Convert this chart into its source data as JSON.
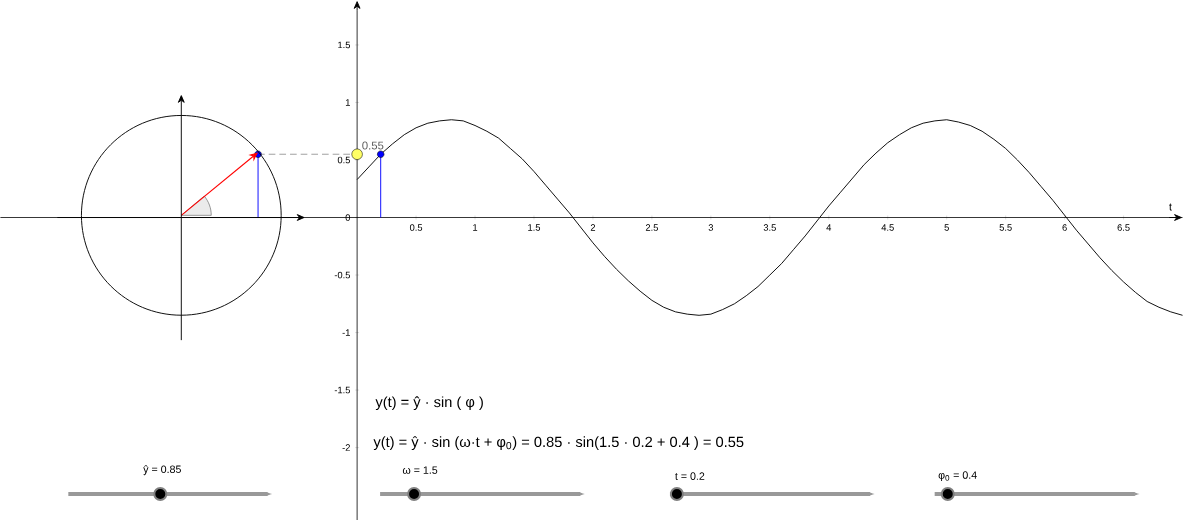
{
  "chart_data": {
    "type": "line",
    "xlabel": "t",
    "xlim": [
      -3.025,
      7.0
    ],
    "ylim": [
      -2.63,
      1.8
    ],
    "xticks": [
      0.5,
      1,
      1.5,
      2,
      2.5,
      3,
      3.5,
      4,
      4.5,
      5,
      5.5,
      6,
      6.5
    ],
    "yticks": [
      -2,
      -1.5,
      -1,
      -0.5,
      0,
      0.5,
      1,
      1.5
    ],
    "series": [
      {
        "color": "#000000",
        "x": [
          0,
          0.1,
          0.2,
          0.3,
          0.4,
          0.5,
          0.6,
          0.7,
          0.8,
          0.9,
          1.0,
          1.1,
          1.2,
          1.3,
          1.4,
          1.5,
          1.6,
          1.7,
          1.8,
          1.9,
          2.0,
          2.1,
          2.2,
          2.3,
          2.4,
          2.5,
          2.6,
          2.7,
          2.8,
          2.9,
          3.0,
          3.1,
          3.2,
          3.3,
          3.4,
          3.5,
          3.6,
          3.7,
          3.8,
          3.9,
          4.0,
          4.1,
          4.2,
          4.3,
          4.4,
          4.5,
          4.6,
          4.7,
          4.8,
          4.9,
          5.0,
          5.1,
          5.2,
          5.3,
          5.4,
          5.5,
          5.6,
          5.7,
          5.8,
          5.9,
          6.0,
          6.1,
          6.2,
          6.3,
          6.4,
          6.5,
          6.6,
          6.7,
          6.8,
          6.9,
          7.0
        ],
        "values": [
          0.33,
          0.44,
          0.55,
          0.64,
          0.72,
          0.78,
          0.82,
          0.84,
          0.85,
          0.84,
          0.8,
          0.75,
          0.69,
          0.6,
          0.51,
          0.4,
          0.28,
          0.16,
          0.04,
          -0.09,
          -0.22,
          -0.34,
          -0.45,
          -0.55,
          -0.64,
          -0.72,
          -0.78,
          -0.82,
          -0.84,
          -0.85,
          -0.84,
          -0.8,
          -0.75,
          -0.68,
          -0.6,
          -0.5,
          -0.4,
          -0.28,
          -0.16,
          -0.03,
          0.1,
          0.22,
          0.34,
          0.46,
          0.56,
          0.65,
          0.72,
          0.78,
          0.82,
          0.84,
          0.85,
          0.83,
          0.8,
          0.75,
          0.68,
          0.6,
          0.5,
          0.39,
          0.27,
          0.15,
          0.02,
          -0.11,
          -0.23,
          -0.35,
          -0.46,
          -0.56,
          -0.65,
          -0.73,
          -0.78,
          -0.82,
          -0.85
        ]
      },
      {
        "type": "line",
        "color": "#0000ff",
        "x": [
          -0.84,
          -0.84
        ],
        "values": [
          0,
          0.55
        ]
      },
      {
        "type": "line",
        "color": "#999999",
        "line_style": "dashed",
        "x": [
          -0.84,
          0
        ],
        "values": [
          0.55,
          0.55
        ]
      },
      {
        "type": "line",
        "color": "#0000ff",
        "x": [
          0.2,
          0.2
        ],
        "values": [
          0,
          0.55
        ]
      },
      {
        "type": "scatter",
        "color": "#0000ff",
        "marker": "circle",
        "x": [
          -0.84
        ],
        "values": [
          0.55
        ]
      },
      {
        "type": "scatter",
        "color": "#0000ff",
        "marker": "circle",
        "x": [
          0.2
        ],
        "values": [
          0.55
        ]
      },
      {
        "type": "scatter",
        "color": "#ffff66",
        "marker": "circle",
        "x": [
          0
        ],
        "values": [
          0.55
        ]
      }
    ],
    "annotations": [
      {
        "text": "0.55",
        "x": 0,
        "y": 0.55
      },
      "y(t) = ŷ · sin ( φ )",
      "y(t) = ŷ · sin (ω·t + φ$_{0}$) = 0.85 · sin(1.5 ·  0.2    + 0.4  ) =     0.55",
      "ŷ = 0.85",
      "ω = 1.5",
      "t = 0.2",
      "φ$_{0}$ = 0.4"
    ]
  }
}
